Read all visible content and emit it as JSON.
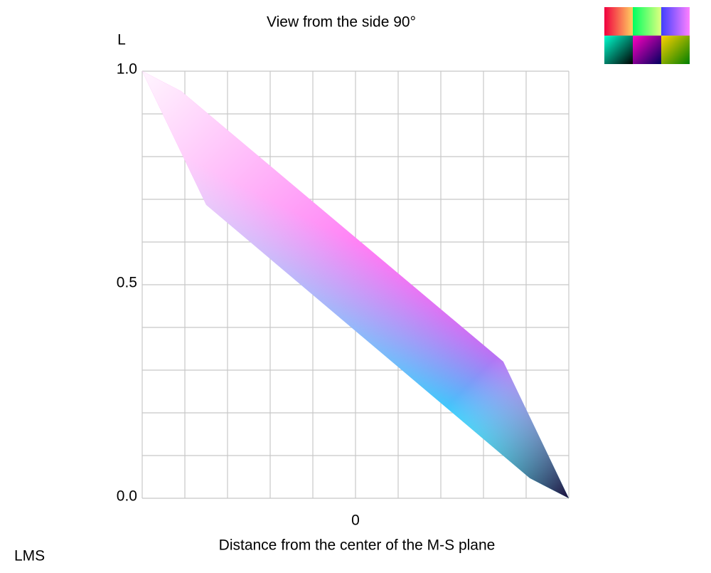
{
  "chart_data": {
    "type": "polygon",
    "title": "View from the side 90°",
    "ylabel": "L",
    "xlabel": "Distance from the center of the M-S plane",
    "corner_label": "LMS",
    "x": [
      -1,
      -0.817,
      0.693,
      1,
      0.817,
      -0.7
    ],
    "values": [
      1,
      0.953,
      0.32,
      0,
      0.047,
      0.687
    ],
    "xlim": [
      -1,
      1
    ],
    "ylim": [
      0,
      1
    ],
    "xticks": [
      0
    ],
    "yticks": [
      {
        "value": 0,
        "label": "0.0"
      },
      {
        "value": 0.5,
        "label": "0.5"
      },
      {
        "value": 1,
        "label": "1.0"
      }
    ],
    "xgrid": [
      -1,
      -0.8,
      -0.6,
      -0.4,
      -0.2,
      0,
      0.2,
      0.4,
      0.6,
      0.8,
      1
    ],
    "ygrid": [
      0,
      0.1,
      0.2,
      0.3,
      0.4,
      0.5,
      0.6,
      0.7,
      0.8,
      0.9,
      1
    ],
    "grid": true,
    "fill_across": [
      "#00f4ff",
      "#ff40f0"
    ],
    "fill_along": [
      "#ffffff",
      "#1a0030"
    ]
  }
}
